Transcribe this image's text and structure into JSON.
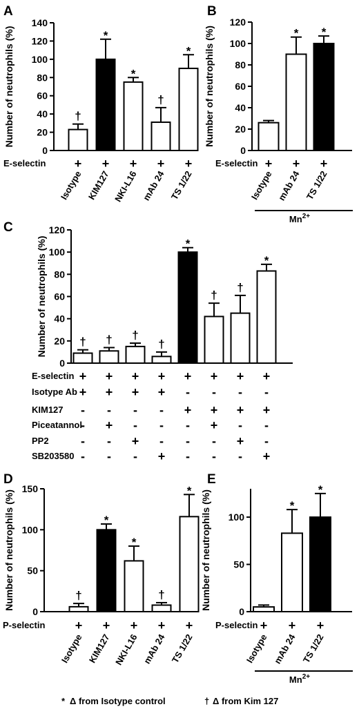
{
  "legend": {
    "star_symbol": "*",
    "star_text": "Δ from Isotype control",
    "dagger_symbol": "†",
    "dagger_text": "Δ from Kim 127"
  },
  "chart_data": [
    {
      "id": "A",
      "panel_label": "A",
      "type": "bar",
      "ylabel": "Number of neutrophils (%)",
      "ylim": [
        0,
        140
      ],
      "yticks": [
        0,
        20,
        40,
        60,
        80,
        100,
        120,
        140
      ],
      "categories": [
        "Isotype",
        "KIM127",
        "NKI-L16",
        "mAb 24",
        "TS 1/22"
      ],
      "values": [
        23,
        100,
        75,
        31,
        90
      ],
      "errors": [
        6,
        22,
        5,
        16,
        15
      ],
      "fills": [
        "white",
        "black",
        "white",
        "white",
        "white"
      ],
      "marks": [
        "†",
        "*",
        "*",
        "†",
        "*"
      ],
      "conditions": [
        {
          "label": "E-selectin",
          "values": [
            "+",
            "+",
            "+",
            "+",
            "+"
          ]
        }
      ],
      "bracket_label": ""
    },
    {
      "id": "B",
      "panel_label": "B",
      "type": "bar",
      "ylabel": "Number of neutrophils (%)",
      "ylim": [
        0,
        120
      ],
      "yticks": [
        0,
        20,
        40,
        60,
        80,
        100,
        120
      ],
      "categories": [
        "Isotype",
        "mAb 24",
        "TS 1/22"
      ],
      "values": [
        26,
        90,
        100
      ],
      "errors": [
        2,
        16,
        7
      ],
      "fills": [
        "white",
        "white",
        "black"
      ],
      "marks": [
        "",
        "*",
        "*"
      ],
      "conditions": [
        {
          "label": "E-selectin",
          "values": [
            "+",
            "+",
            "+"
          ]
        }
      ],
      "bracket_label": "Mn",
      "bracket_sup": "2+"
    },
    {
      "id": "C",
      "panel_label": "C",
      "type": "bar",
      "ylabel": "Number of neutrophils (%)",
      "ylim": [
        0,
        120
      ],
      "yticks": [
        0,
        20,
        40,
        60,
        80,
        100,
        120
      ],
      "categories": [
        "",
        "",
        "",
        "",
        "",
        "",
        "",
        ""
      ],
      "values": [
        9,
        11,
        15,
        6,
        100,
        42,
        45,
        83
      ],
      "errors": [
        3,
        3,
        3,
        4,
        4,
        12,
        16,
        6
      ],
      "fills": [
        "white",
        "white",
        "white",
        "white",
        "black",
        "white",
        "white",
        "white"
      ],
      "marks": [
        "†",
        "†",
        "†",
        "†",
        "*",
        "†",
        "†",
        "*"
      ],
      "conditions": [
        {
          "label": "E-selectin",
          "values": [
            "+",
            "+",
            "+",
            "+",
            "+",
            "+",
            "+",
            "+"
          ]
        },
        {
          "label": "Isotype Ab",
          "values": [
            "+",
            "+",
            "+",
            "+",
            "-",
            "-",
            "-",
            "-"
          ]
        },
        {
          "label": "KIM127",
          "values": [
            "-",
            "-",
            "-",
            "-",
            "+",
            "+",
            "+",
            "+"
          ]
        },
        {
          "label": "Piceatannol",
          "values": [
            "-",
            "+",
            "-",
            "-",
            "-",
            "+",
            "-",
            "-"
          ]
        },
        {
          "label": "PP2",
          "values": [
            "-",
            "-",
            "+",
            "-",
            "-",
            "-",
            "+",
            "-"
          ]
        },
        {
          "label": "SB203580",
          "values": [
            "-",
            "-",
            "-",
            "+",
            "-",
            "-",
            "-",
            "+"
          ]
        }
      ],
      "bracket_label": ""
    },
    {
      "id": "D",
      "panel_label": "D",
      "type": "bar",
      "ylabel": "Number of neutrophils (%)",
      "ylim": [
        0,
        150
      ],
      "yticks": [
        0,
        50,
        100,
        150
      ],
      "categories": [
        "Isotype",
        "KIM127",
        "NKI-L16",
        "mAb 24",
        "TS 1/22"
      ],
      "values": [
        6,
        100,
        62,
        8,
        116
      ],
      "errors": [
        4,
        7,
        18,
        3,
        27
      ],
      "fills": [
        "white",
        "black",
        "white",
        "white",
        "white"
      ],
      "marks": [
        "†",
        "*",
        "*",
        "†",
        "*"
      ],
      "conditions": [
        {
          "label": "P-selectin",
          "values": [
            "+",
            "+",
            "+",
            "+",
            "+"
          ]
        }
      ],
      "bracket_label": ""
    },
    {
      "id": "E",
      "panel_label": "E",
      "type": "bar",
      "ylabel": "Number of neutrophils (%)",
      "ylim": [
        0,
        130
      ],
      "yticks": [
        0,
        50,
        100
      ],
      "categories": [
        "Isotype",
        "mAb 24",
        "TS 1/22"
      ],
      "values": [
        5,
        83,
        100
      ],
      "errors": [
        2,
        25,
        25
      ],
      "fills": [
        "white",
        "white",
        "black"
      ],
      "marks": [
        "",
        "*",
        "*"
      ],
      "conditions": [
        {
          "label": "P-selectin",
          "values": [
            "+",
            "+",
            "+"
          ]
        }
      ],
      "bracket_label": "Mn",
      "bracket_sup": "2+"
    }
  ]
}
